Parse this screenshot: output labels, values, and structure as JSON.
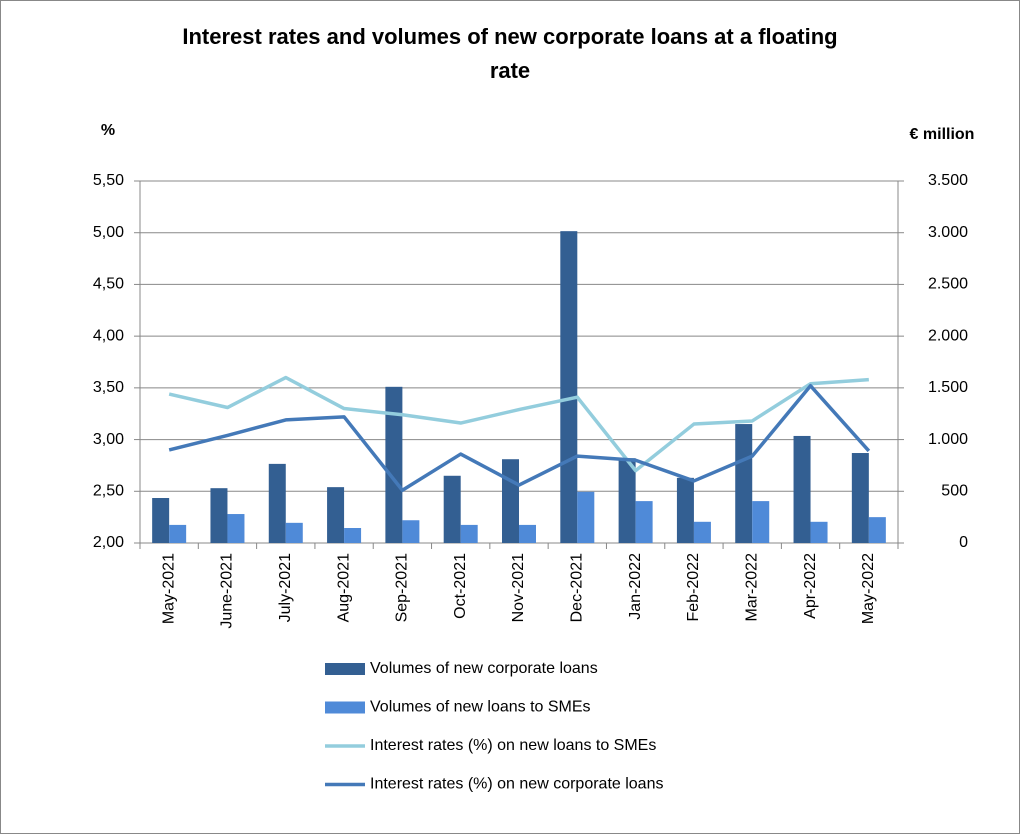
{
  "chart_data": {
    "type": "bar-line",
    "title": "Interest rates and volumes of new corporate loans at a floating rate",
    "y_label": "%",
    "y2_label": "€ million",
    "categories": [
      "May-2021",
      "June-2021",
      "July-2021",
      "Aug-2021",
      "Sep-2021",
      "Oct-2021",
      "Nov-2021",
      "Dec-2021",
      "Jan-2022",
      "Feb-2022",
      "Mar-2022",
      "Apr-2022",
      "May-2022"
    ],
    "series": [
      {
        "name": "Volumes of new corporate loans",
        "type": "bar",
        "axis": "y2",
        "color": "#335f92",
        "values": [
          435,
          530,
          765,
          540,
          1510,
          650,
          810,
          3015,
          820,
          630,
          1150,
          1035,
          870
        ]
      },
      {
        "name": "Volumes of new loans to SMEs",
        "type": "bar",
        "axis": "y2",
        "color": "#4f8ad8",
        "values": [
          175,
          280,
          195,
          145,
          220,
          175,
          175,
          495,
          405,
          205,
          405,
          205,
          250
        ]
      },
      {
        "name": "Interest rates (%) on new loans to SMEs",
        "type": "line",
        "color": "#93cddd",
        "values": [
          3.44,
          3.31,
          3.6,
          3.3,
          3.24,
          3.16,
          3.29,
          3.41,
          2.7,
          3.15,
          3.18,
          3.54,
          3.58
        ]
      },
      {
        "name": "Interest rates (%) on new corporate loans",
        "type": "line",
        "color": "#4479b8",
        "values": [
          2.9,
          3.04,
          3.19,
          3.22,
          2.51,
          2.86,
          2.56,
          2.84,
          2.8,
          2.6,
          2.84,
          3.52,
          2.89
        ]
      }
    ],
    "ylim": [
      2,
      5.5
    ],
    "yticks": [
      {
        "value": 2,
        "label": "2,00"
      },
      {
        "value": 2.5,
        "label": "2,50"
      },
      {
        "value": 3,
        "label": "3,00"
      },
      {
        "value": 3.5,
        "label": "3,50"
      },
      {
        "value": 4,
        "label": "4,00"
      },
      {
        "value": 4.5,
        "label": "4,50"
      },
      {
        "value": 5,
        "label": "5,00"
      },
      {
        "value": 5.5,
        "label": "5,50"
      }
    ],
    "y2lim": [
      0,
      3500
    ],
    "y2ticks": [
      0,
      500,
      {
        "value": 1000,
        "label": "1.000"
      },
      {
        "value": 1500,
        "label": "1.500"
      },
      {
        "value": 2000,
        "label": "2.000"
      },
      {
        "value": 2500,
        "label": "2.500"
      },
      {
        "value": 3000,
        "label": "3.000"
      },
      {
        "value": 3500,
        "label": "3.500"
      }
    ],
    "grid": true
  }
}
